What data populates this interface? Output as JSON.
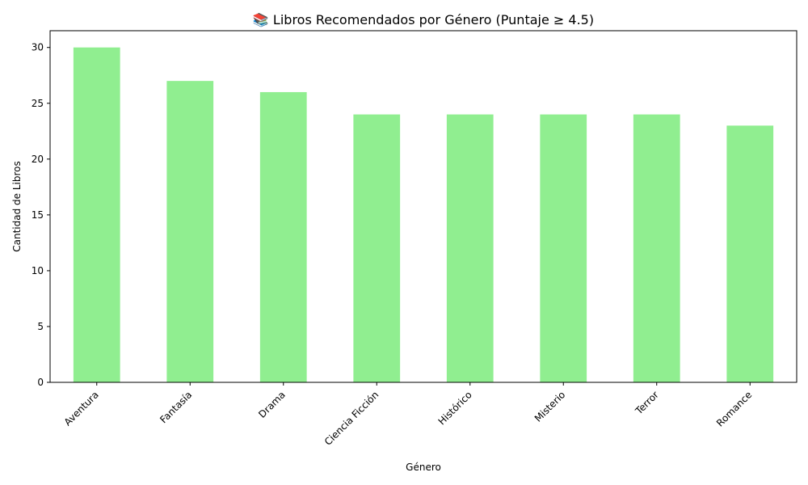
{
  "chart_data": {
    "type": "bar",
    "title": "📚 Libros Recomendados por Género (Puntaje ≥ 4.5)",
    "xlabel": "Género",
    "ylabel": "Cantidad de Libros",
    "categories": [
      "Aventura",
      "Fantasía",
      "Drama",
      "Ciencia Ficción",
      "Histórico",
      "Misterio",
      "Terror",
      "Romance"
    ],
    "values": [
      30,
      27,
      26,
      24,
      24,
      24,
      24,
      23
    ],
    "ylim": [
      0,
      31.5
    ],
    "yticks": [
      0,
      5,
      10,
      15,
      20,
      25,
      30
    ],
    "bar_color": "#90ee90",
    "grid": false,
    "legend": "none"
  }
}
